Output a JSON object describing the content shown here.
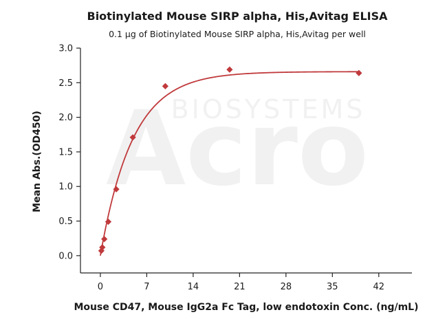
{
  "chart_data": {
    "type": "scatter",
    "title": "Biotinylated Mouse SIRP alpha, His,Avitag ELISA",
    "subtitle": "0.1 μg of Biotinylated Mouse SIRP alpha, His,Avitag per well",
    "xlabel": "Mouse CD47, Mouse IgG2a Fc Tag, low endotoxin Conc. (ng/mL)",
    "ylabel": "Mean Abs.(OD450)",
    "xlim": [
      -3,
      47
    ],
    "ylim": [
      -0.25,
      3.0
    ],
    "x_ticks": [
      "0",
      "7",
      "14",
      "21",
      "28",
      "35",
      "42"
    ],
    "y_ticks": [
      "0.0",
      "0.5",
      "1.0",
      "1.5",
      "2.0",
      "2.5",
      "3.0"
    ],
    "grid": false,
    "marker_color": "#c0393b",
    "line_color": "#c0393b",
    "points": [
      {
        "x": 0.15,
        "y": 0.07
      },
      {
        "x": 0.3,
        "y": 0.12
      },
      {
        "x": 0.6,
        "y": 0.24
      },
      {
        "x": 1.2,
        "y": 0.49
      },
      {
        "x": 2.4,
        "y": 0.96
      },
      {
        "x": 4.9,
        "y": 1.71
      },
      {
        "x": 9.8,
        "y": 2.45
      },
      {
        "x": 19.5,
        "y": 2.69
      },
      {
        "x": 39.0,
        "y": 2.64
      }
    ],
    "fit_curve": {
      "top": 2.66,
      "k": 0.205,
      "max_x": 39
    }
  },
  "watermark": {
    "brand": "Acro",
    "subtext": "BIOSYSTEMS"
  }
}
